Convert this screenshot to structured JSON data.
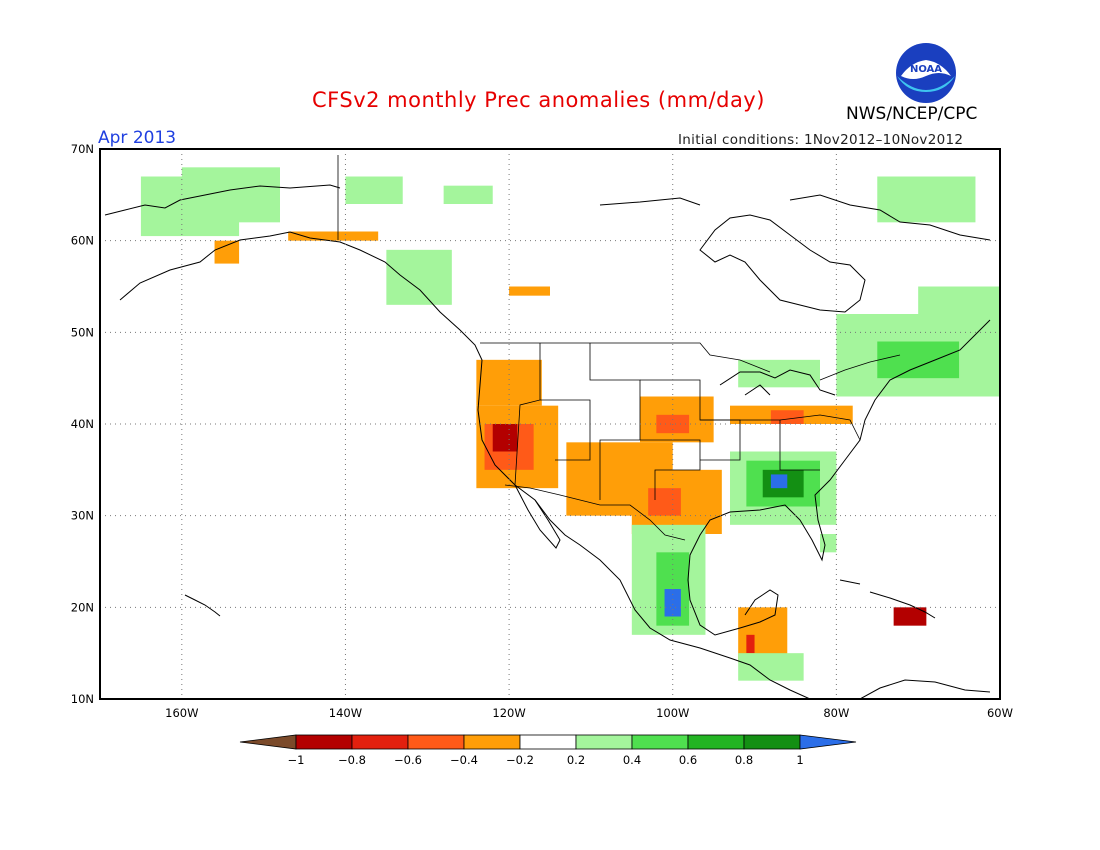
{
  "header": {
    "title": "CFSv2 monthly Prec anomalies (mm/day)",
    "period": "Apr 2013",
    "initial_conditions": "Initial conditions: 1Nov2012–10Nov2012",
    "agency": "NWS/NCEP/CPC",
    "logo_text": "NOAA"
  },
  "map": {
    "lon_labels": [
      "160W",
      "140W",
      "120W",
      "100W",
      "80W",
      "60W"
    ],
    "lat_labels": [
      "70N",
      "60N",
      "50N",
      "40N",
      "30N",
      "20N",
      "10N"
    ],
    "lon_range": [
      -170,
      -60
    ],
    "lat_range": [
      10,
      70
    ]
  },
  "colorbar": {
    "labels": [
      "−1",
      "−0.8",
      "−0.6",
      "−0.4",
      "−0.2",
      "0.2",
      "0.4",
      "0.6",
      "0.8",
      "1"
    ],
    "colors": [
      "#7b4a2a",
      "#b30000",
      "#e3200e",
      "#ff5a18",
      "#ff9e08",
      "#ffffff",
      "#a4f59c",
      "#4fe04f",
      "#23b423",
      "#138f13",
      "#2b6ee8"
    ]
  },
  "colors": {
    "brown": "#7b4a2a",
    "darkred": "#b30000",
    "red": "#e3200e",
    "orangered": "#ff5a18",
    "orange": "#ff9e08",
    "lightgreen": "#a4f59c",
    "green": "#4fe04f",
    "midgreen": "#23b423",
    "darkgreen": "#138f13",
    "blue": "#2b6ee8"
  },
  "anomaly_regions": [
    {
      "name": "alaska-west",
      "class": "lightgreen",
      "lon": [
        -165,
        -153
      ],
      "lat": [
        60.5,
        67
      ]
    },
    {
      "name": "alaska-north",
      "class": "lightgreen",
      "lon": [
        -160,
        -148
      ],
      "lat": [
        62,
        68
      ]
    },
    {
      "name": "yukon-north",
      "class": "lightgreen",
      "lon": [
        -140,
        -133
      ],
      "lat": [
        64,
        67
      ]
    },
    {
      "name": "nwt-north",
      "class": "lightgreen",
      "lon": [
        -128,
        -122
      ],
      "lat": [
        64,
        66
      ]
    },
    {
      "name": "alaska-south-coast",
      "class": "orange",
      "lon": [
        -147,
        -136
      ],
      "lat": [
        60,
        61
      ]
    },
    {
      "name": "alaska-southwest",
      "class": "orange",
      "lon": [
        -156,
        -153
      ],
      "lat": [
        57.5,
        60
      ]
    },
    {
      "name": "bc-panhandle",
      "class": "lightgreen",
      "lon": [
        -135,
        -127
      ],
      "lat": [
        53,
        59
      ]
    },
    {
      "name": "canada-prairie-dry",
      "class": "orange",
      "lon": [
        -120,
        -115
      ],
      "lat": [
        54,
        55
      ]
    },
    {
      "name": "canada-east",
      "class": "lightgreen",
      "lon": [
        -80,
        -60
      ],
      "lat": [
        43,
        52
      ]
    },
    {
      "name": "quebec-wet",
      "class": "green",
      "lon": [
        -75,
        -65
      ],
      "lat": [
        45,
        49
      ]
    },
    {
      "name": "labrador",
      "class": "lightgreen",
      "lon": [
        -70,
        -60
      ],
      "lat": [
        52,
        55
      ]
    },
    {
      "name": "greenland-south",
      "class": "lightgreen",
      "lon": [
        -75,
        -63
      ],
      "lat": [
        62,
        67
      ]
    },
    {
      "name": "northwest-us",
      "class": "orange",
      "lon": [
        -124,
        -116
      ],
      "lat": [
        42,
        47
      ]
    },
    {
      "name": "california",
      "class": "orange",
      "lon": [
        -124,
        -114
      ],
      "lat": [
        33,
        42
      ]
    },
    {
      "name": "california-core",
      "class": "orangered",
      "lon": [
        -123,
        -117
      ],
      "lat": [
        35,
        40
      ]
    },
    {
      "name": "california-dry",
      "class": "darkred",
      "lon": [
        -122,
        -119
      ],
      "lat": [
        37,
        40
      ]
    },
    {
      "name": "southwest-us",
      "class": "orange",
      "lon": [
        -113,
        -100
      ],
      "lat": [
        30,
        38
      ]
    },
    {
      "name": "texas",
      "class": "orange",
      "lon": [
        -105,
        -94
      ],
      "lat": [
        28,
        35
      ]
    },
    {
      "name": "texas-core",
      "class": "orangered",
      "lon": [
        -103,
        -99
      ],
      "lat": [
        30,
        33
      ]
    },
    {
      "name": "central-plains",
      "class": "orange",
      "lon": [
        -104,
        -95
      ],
      "lat": [
        38,
        43
      ]
    },
    {
      "name": "plains-core",
      "class": "orangered",
      "lon": [
        -102,
        -98
      ],
      "lat": [
        39,
        41
      ]
    },
    {
      "name": "midwest-dry",
      "class": "orange",
      "lon": [
        -93,
        -78
      ],
      "lat": [
        40,
        42
      ]
    },
    {
      "name": "midwest-core",
      "class": "orangered",
      "lon": [
        -88,
        -84
      ],
      "lat": [
        40,
        41.5
      ]
    },
    {
      "name": "southeast-us",
      "class": "lightgreen",
      "lon": [
        -93,
        -80
      ],
      "lat": [
        29,
        37
      ]
    },
    {
      "name": "southeast-wet",
      "class": "green",
      "lon": [
        -91,
        -82
      ],
      "lat": [
        31,
        36
      ]
    },
    {
      "name": "alabama-wet",
      "class": "darkgreen",
      "lon": [
        -89,
        -84
      ],
      "lat": [
        32,
        35
      ]
    },
    {
      "name": "alabama-core",
      "class": "blue",
      "lon": [
        -88,
        -86
      ],
      "lat": [
        33,
        34.5
      ]
    },
    {
      "name": "great-lakes",
      "class": "lightgreen",
      "lon": [
        -92,
        -82
      ],
      "lat": [
        44,
        47
      ]
    },
    {
      "name": "florida",
      "class": "lightgreen",
      "lon": [
        -82,
        -80
      ],
      "lat": [
        26,
        28
      ]
    },
    {
      "name": "mexico-east",
      "class": "lightgreen",
      "lon": [
        -105,
        -96
      ],
      "lat": [
        17,
        29
      ]
    },
    {
      "name": "mexico-east-wet",
      "class": "green",
      "lon": [
        -102,
        -98
      ],
      "lat": [
        18,
        26
      ]
    },
    {
      "name": "mexico-east-core",
      "class": "blue",
      "lon": [
        -101,
        -99
      ],
      "lat": [
        19,
        22
      ]
    },
    {
      "name": "mexico-south-dry",
      "class": "orange",
      "lon": [
        -92,
        -86
      ],
      "lat": [
        14,
        20
      ]
    },
    {
      "name": "mexico-south-core",
      "class": "red",
      "lon": [
        -91,
        -90
      ],
      "lat": [
        15,
        17
      ]
    },
    {
      "name": "central-america",
      "class": "lightgreen",
      "lon": [
        -92,
        -84
      ],
      "lat": [
        12,
        15
      ]
    },
    {
      "name": "hispaniola",
      "class": "darkred",
      "lon": [
        -73,
        -69
      ],
      "lat": [
        18,
        20
      ]
    }
  ]
}
